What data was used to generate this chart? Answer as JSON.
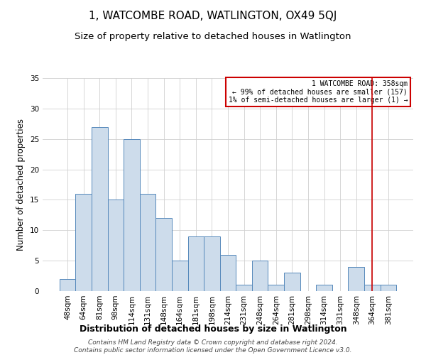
{
  "title": "1, WATCOMBE ROAD, WATLINGTON, OX49 5QJ",
  "subtitle": "Size of property relative to detached houses in Watlington",
  "xlabel": "Distribution of detached houses by size in Watlington",
  "ylabel": "Number of detached properties",
  "bar_labels": [
    "48sqm",
    "64sqm",
    "81sqm",
    "98sqm",
    "114sqm",
    "131sqm",
    "148sqm",
    "164sqm",
    "181sqm",
    "198sqm",
    "214sqm",
    "231sqm",
    "248sqm",
    "264sqm",
    "281sqm",
    "298sqm",
    "314sqm",
    "331sqm",
    "348sqm",
    "364sqm",
    "381sqm"
  ],
  "bar_values": [
    2,
    16,
    27,
    15,
    25,
    16,
    12,
    5,
    9,
    9,
    6,
    1,
    5,
    1,
    3,
    0,
    1,
    0,
    4,
    1,
    1
  ],
  "bar_color": "#cddceb",
  "bar_edge_color": "#5588bb",
  "vline_x": 19.0,
  "vline_color": "#cc0000",
  "annotation_text": "1 WATCOMBE ROAD: 358sqm\n← 99% of detached houses are smaller (157)\n1% of semi-detached houses are larger (1) →",
  "annotation_box_color": "#ffffff",
  "annotation_box_edge_color": "#cc0000",
  "ylim": [
    0,
    35
  ],
  "yticks": [
    0,
    5,
    10,
    15,
    20,
    25,
    30,
    35
  ],
  "footnote": "Contains HM Land Registry data © Crown copyright and database right 2024.\nContains public sector information licensed under the Open Government Licence v3.0.",
  "title_fontsize": 11,
  "subtitle_fontsize": 9.5,
  "xlabel_fontsize": 9,
  "ylabel_fontsize": 8.5,
  "tick_fontsize": 7.5,
  "footnote_fontsize": 6.5,
  "background_color": "#ffffff",
  "grid_color": "#d0d0d0"
}
